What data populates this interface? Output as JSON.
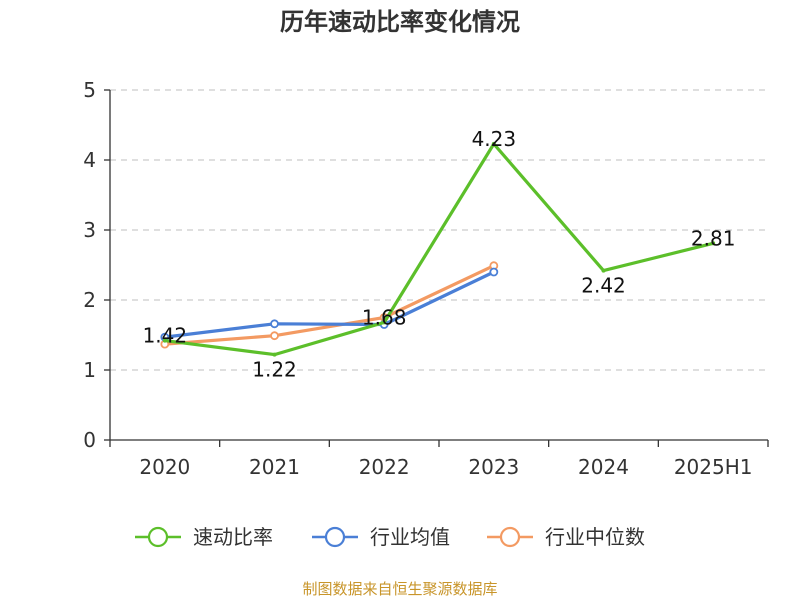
{
  "chart_data": {
    "type": "line",
    "title": "历年速动比率变化情况",
    "categories": [
      "2020",
      "2021",
      "2022",
      "2023",
      "2024",
      "2025H1"
    ],
    "ylim": [
      0,
      5
    ],
    "yticks": [
      0,
      1,
      2,
      3,
      4,
      5
    ],
    "grid": true,
    "legend_position": "bottom",
    "series": [
      {
        "name": "速动比率",
        "color": "#5cbf2a",
        "values": [
          1.42,
          1.22,
          1.68,
          4.23,
          2.42,
          2.81
        ],
        "data_labels": [
          "1.42",
          "1.22",
          "1.68",
          "4.23",
          "2.42",
          "2.81"
        ]
      },
      {
        "name": "行业均值",
        "color": "#4a7fd6",
        "values": [
          1.47,
          1.66,
          1.65,
          2.4,
          null,
          null
        ]
      },
      {
        "name": "行业中位数",
        "color": "#f39a62",
        "values": [
          1.37,
          1.49,
          1.75,
          2.49,
          null,
          null
        ]
      }
    ]
  },
  "footer": {
    "source": "制图数据来自恒生聚源数据库"
  }
}
